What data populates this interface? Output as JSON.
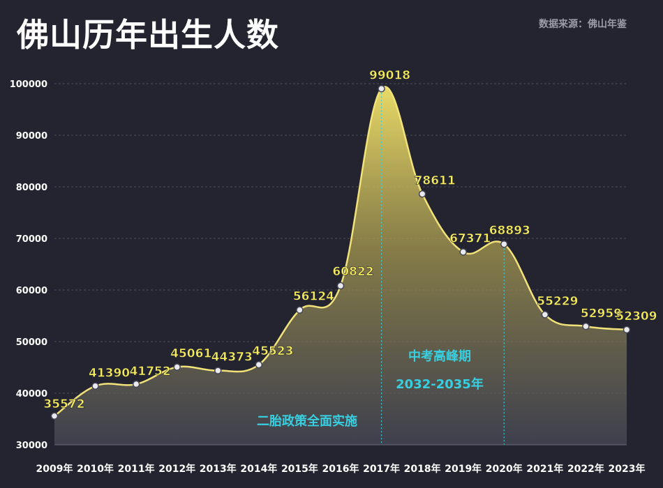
{
  "header": {
    "title": "佛山历年出生人数",
    "source": "数据来源：佛山年鉴"
  },
  "colors": {
    "background": "#23242f",
    "line": "#f2e27a",
    "label": "#f7ec5c",
    "annotation": "#38cfe0"
  },
  "chart_data": {
    "type": "area",
    "title": "佛山历年出生人数",
    "xlabel": "",
    "ylabel": "",
    "categories": [
      "2009年",
      "2010年",
      "2011年",
      "2012年",
      "2013年",
      "2014年",
      "2015年",
      "2016年",
      "2017年",
      "2018年",
      "2019年",
      "2020年",
      "2021年",
      "2022年",
      "2023年"
    ],
    "values": [
      35572,
      41390,
      41752,
      45061,
      44373,
      45523,
      56124,
      60822,
      99018,
      78611,
      67371,
      68893,
      55229,
      52959,
      52309
    ],
    "ylim": [
      30000,
      100000
    ],
    "yticks": [
      30000,
      40000,
      50000,
      60000,
      70000,
      80000,
      90000,
      100000
    ],
    "grid": true,
    "annotations": [
      {
        "category": "2017年",
        "texts": [
          "二胎政策全面实施"
        ]
      },
      {
        "category": "2020年",
        "texts": [
          "中考高峰期",
          "2032-2035年"
        ]
      }
    ]
  }
}
